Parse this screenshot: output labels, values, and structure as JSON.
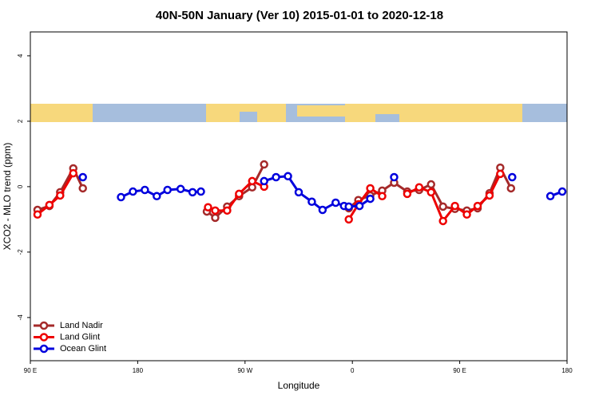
{
  "chart_data": {
    "type": "line",
    "title": "40N-50N January (Ver 10)   2015-01-01 to 2020-12-18",
    "x_label": "Longitude",
    "y_label": "XCO2 - MLO trend (ppm)",
    "xlim": [
      90,
      540
    ],
    "ylim": [
      -5.32,
      4.73
    ],
    "xticks": [
      {
        "value": 90,
        "label": "90 E"
      },
      180,
      {
        "value": 270,
        "label": "90 W"
      },
      {
        "value": 360,
        "label": "0"
      },
      {
        "value": 450,
        "label": "90 E"
      },
      {
        "value": 540,
        "label": "180"
      }
    ],
    "yticks": [
      -4,
      -2,
      0,
      2,
      4
    ],
    "legend": "bottom-left",
    "series": [
      {
        "name": "Land Nadir",
        "color": "#a52a2a",
        "x": [
          96,
          106,
          115,
          126,
          134,
          null,
          238,
          245,
          255,
          265,
          276,
          286,
          null,
          357,
          365,
          375,
          385,
          395,
          406,
          416,
          426,
          436,
          446,
          456,
          465,
          475,
          484,
          493
        ],
        "values": [
          -0.71,
          -0.59,
          -0.17,
          0.56,
          -0.05,
          null,
          -0.76,
          -0.95,
          -0.61,
          -0.29,
          -0.02,
          0.68,
          null,
          -0.66,
          -0.41,
          -0.27,
          -0.12,
          0.12,
          -0.15,
          -0.1,
          0.07,
          -0.61,
          -0.68,
          -0.73,
          -0.66,
          -0.2,
          0.58,
          -0.05
        ]
      },
      {
        "name": "Land Glint",
        "color": "#ee0000",
        "x": [
          96,
          106,
          115,
          126,
          null,
          239,
          245,
          255,
          265,
          276,
          286,
          null,
          357,
          365,
          375,
          385,
          null,
          406,
          416,
          426,
          436,
          446,
          456,
          465,
          475,
          484
        ],
        "values": [
          -0.85,
          -0.56,
          -0.27,
          0.41,
          null,
          -0.63,
          -0.73,
          -0.73,
          -0.22,
          0.17,
          0,
          null,
          -1.0,
          -0.54,
          -0.05,
          -0.29,
          null,
          -0.22,
          -0.02,
          -0.17,
          -1.05,
          -0.59,
          -0.85,
          -0.59,
          -0.27,
          0.39
        ]
      },
      {
        "name": "Ocean Glint",
        "color": "#0000dd",
        "x": [
          134,
          null,
          166,
          176,
          186,
          196,
          205,
          216,
          226,
          233,
          null,
          286,
          296,
          306,
          315,
          326,
          335,
          346,
          353,
          357,
          366,
          375,
          null,
          395,
          null,
          494,
          null,
          526,
          536
        ],
        "values": [
          0.29,
          null,
          -0.32,
          -0.15,
          -0.1,
          -0.29,
          -0.1,
          -0.07,
          -0.17,
          -0.15,
          null,
          0.17,
          0.29,
          0.32,
          -0.17,
          -0.46,
          -0.71,
          -0.49,
          -0.59,
          -0.61,
          -0.59,
          -0.37,
          null,
          0.29,
          null,
          0.29,
          null,
          -0.29,
          -0.15
        ]
      }
    ]
  }
}
